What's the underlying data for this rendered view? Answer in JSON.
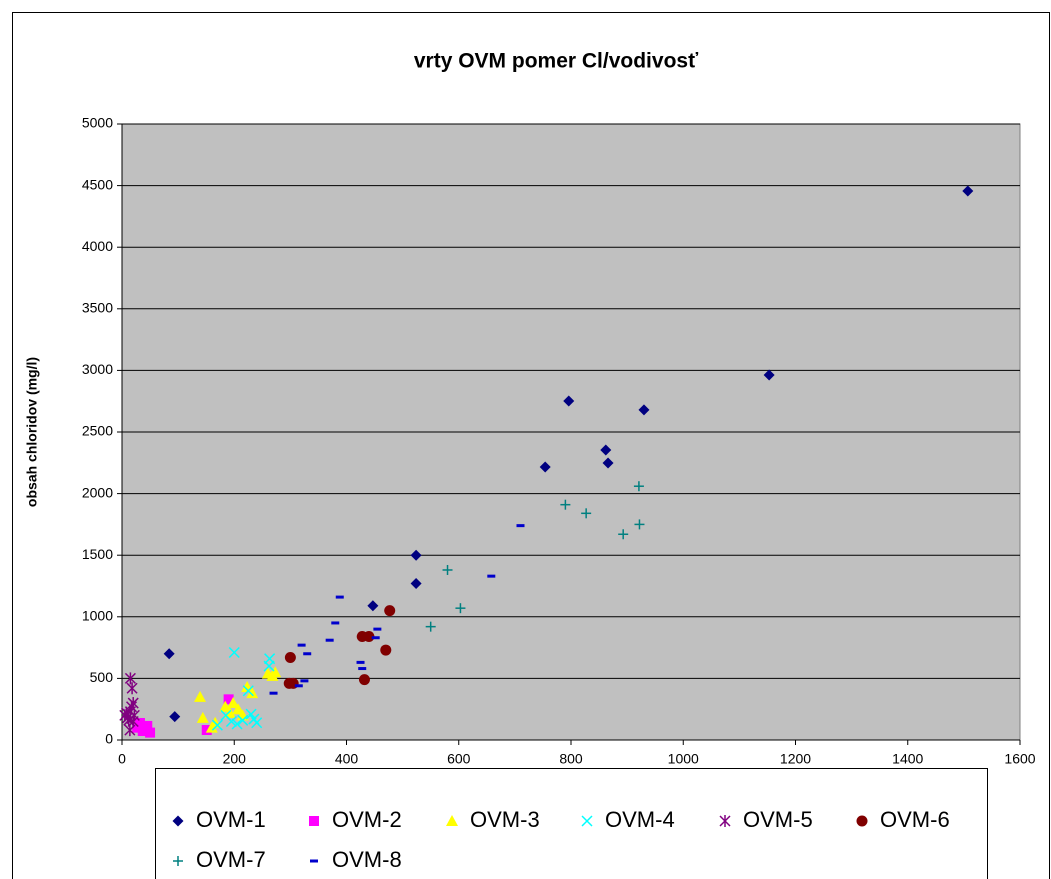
{
  "chart_data": {
    "type": "scatter",
    "title": "vrty OVM pomer Cl/vodivosť",
    "y_label": "obsah chloridov (mg/l)",
    "xlim": [
      0,
      1600
    ],
    "xticks": [
      0,
      200,
      400,
      600,
      800,
      1000,
      1200,
      1400,
      1600
    ],
    "ylim": [
      0,
      5000
    ],
    "yticks": [
      0,
      500,
      1000,
      1500,
      2000,
      2500,
      3000,
      3500,
      4000,
      4500,
      5000
    ],
    "grid": true,
    "legend": "bottom",
    "plot_background": "#c0c0c0",
    "series": [
      {
        "name": "OVM-1",
        "color": "#000080",
        "marker": "diamond",
        "x": [
          84,
          94,
          447,
          524,
          524,
          754,
          796,
          862,
          866,
          930,
          1153,
          1507
        ],
        "values": [
          700,
          190,
          1090,
          1500,
          1270,
          2216,
          2752,
          2354,
          2248,
          2680,
          2963,
          4456
        ]
      },
      {
        "name": "OVM-2",
        "color": "#ff00ff",
        "marker": "square",
        "x": [
          27,
          32,
          37,
          45,
          50,
          151,
          190
        ],
        "values": [
          100,
          138,
          73,
          114,
          60,
          81,
          330
        ]
      },
      {
        "name": "OVM-3",
        "color": "#ffff00",
        "marker": "triangle",
        "x": [
          139,
          144,
          166,
          184,
          192,
          198,
          215,
          223,
          232,
          260,
          268,
          273,
          160,
          207
        ],
        "values": [
          350,
          180,
          140,
          270,
          220,
          300,
          200,
          430,
          380,
          540,
          520,
          550,
          100,
          250
        ]
      },
      {
        "name": "OVM-4",
        "color": "#00ffff",
        "marker": "x",
        "x": [
          200,
          263,
          262,
          225,
          230,
          215,
          195,
          185,
          240,
          205,
          170,
          235
        ],
        "values": [
          710,
          660,
          600,
          400,
          210,
          160,
          150,
          200,
          140,
          130,
          120,
          170
        ]
      },
      {
        "name": "OVM-5",
        "color": "#800080",
        "marker": "asterisk",
        "x": [
          5,
          10,
          12,
          15,
          15,
          18,
          20,
          17,
          14,
          8,
          20,
          22
        ],
        "values": [
          200,
          180,
          160,
          230,
          500,
          420,
          300,
          270,
          80,
          220,
          150,
          200
        ]
      },
      {
        "name": "OVM-6",
        "color": "#800000",
        "marker": "circle",
        "x": [
          300,
          298,
          305,
          428,
          440,
          477,
          470,
          432
        ],
        "values": [
          670,
          460,
          460,
          840,
          840,
          1050,
          730,
          490
        ]
      },
      {
        "name": "OVM-7",
        "color": "#008080",
        "marker": "plus",
        "x": [
          550,
          580,
          603,
          790,
          827,
          893,
          921,
          922
        ],
        "values": [
          920,
          1380,
          1070,
          1910,
          1840,
          1670,
          2060,
          1750
        ]
      },
      {
        "name": "OVM-8",
        "color": "#0000cc",
        "marker": "dash",
        "x": [
          388,
          380,
          370,
          320,
          330,
          325,
          315,
          270,
          425,
          428,
          455,
          452,
          710,
          658
        ],
        "values": [
          1160,
          950,
          810,
          770,
          700,
          480,
          440,
          380,
          630,
          580,
          900,
          830,
          1740,
          1330
        ]
      }
    ]
  }
}
